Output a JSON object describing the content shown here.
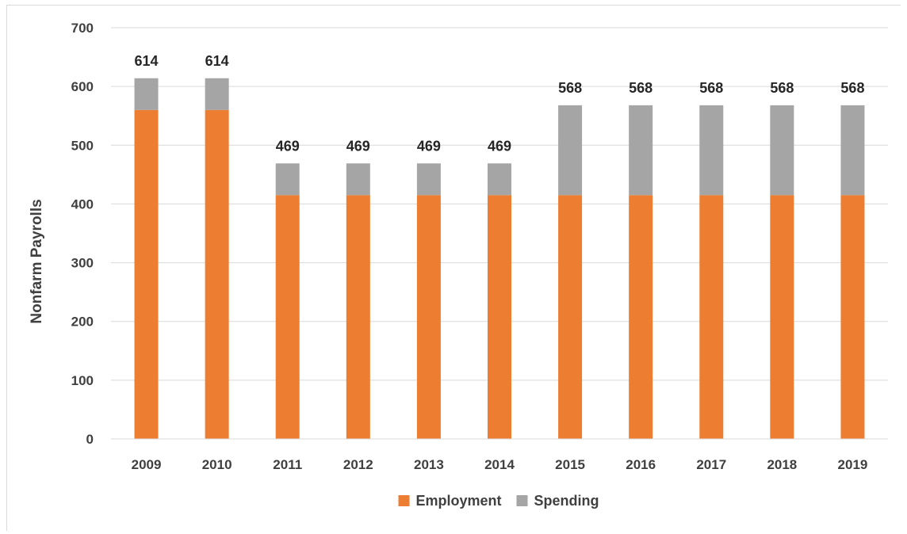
{
  "chart_data": {
    "type": "bar",
    "stacked": true,
    "title": "",
    "xlabel": "",
    "ylabel": "Nonfarm Payrolls",
    "ylim": [
      0,
      700
    ],
    "yticks": [
      0,
      100,
      200,
      300,
      400,
      500,
      600,
      700
    ],
    "grid": true,
    "legend_position": "bottom",
    "categories": [
      "2009",
      "2010",
      "2011",
      "2012",
      "2013",
      "2014",
      "2015",
      "2016",
      "2017",
      "2018",
      "2019"
    ],
    "series": [
      {
        "name": "Employment",
        "color": "#ed7d31",
        "values": [
          560,
          560,
          415,
          415,
          415,
          415,
          415,
          415,
          415,
          415,
          415
        ]
      },
      {
        "name": "Spending",
        "color": "#a5a5a5",
        "values": [
          54,
          54,
          54,
          54,
          54,
          54,
          153,
          153,
          153,
          153,
          153
        ]
      }
    ],
    "totals": [
      614,
      614,
      469,
      469,
      469,
      469,
      568,
      568,
      568,
      568,
      568
    ]
  }
}
